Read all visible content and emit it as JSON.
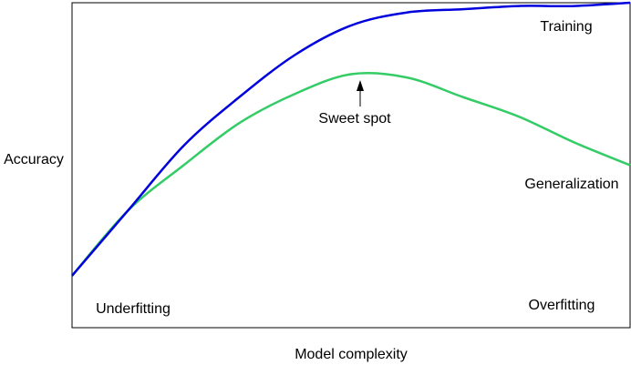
{
  "chart_data": {
    "type": "line",
    "x_label": "Model complexity",
    "y_label": "Accuracy",
    "x": [
      0,
      1,
      2,
      3,
      4,
      5,
      6,
      7,
      8,
      9,
      10
    ],
    "xlim": [
      0,
      10
    ],
    "ylim": [
      0,
      1
    ],
    "series": [
      {
        "name": "Training",
        "color": "#0000dd",
        "values": [
          0.16,
          0.36,
          0.56,
          0.71,
          0.84,
          0.93,
          0.97,
          0.98,
          0.99,
          0.99,
          1.0
        ]
      },
      {
        "name": "Generalization",
        "color": "#33cc66",
        "values": [
          0.16,
          0.36,
          0.5,
          0.63,
          0.72,
          0.78,
          0.77,
          0.71,
          0.65,
          0.57,
          0.5
        ]
      }
    ],
    "annotations": [
      "Sweet spot",
      "Underfitting",
      "Overfitting"
    ]
  }
}
